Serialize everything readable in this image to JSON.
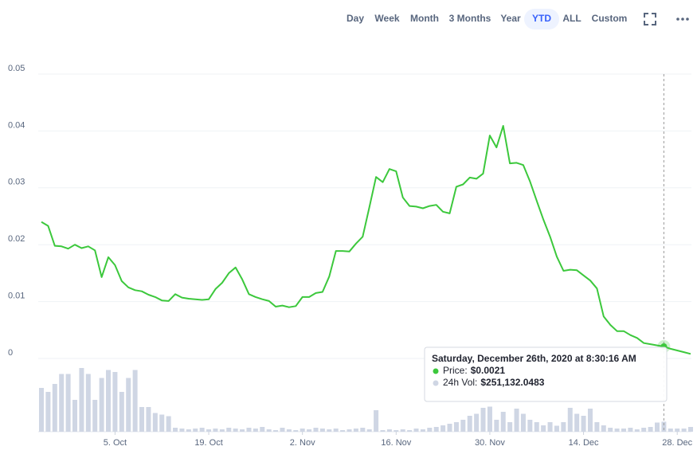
{
  "toolbar": {
    "ranges": [
      "Day",
      "Week",
      "Month",
      "3 Months",
      "Year",
      "YTD",
      "ALL",
      "Custom"
    ],
    "selected": "YTD"
  },
  "chart_data": {
    "type": "line",
    "categories": [
      null,
      null,
      null,
      null,
      null,
      null,
      null,
      null,
      null,
      null,
      null,
      "5. Oct",
      null,
      null,
      null,
      null,
      null,
      null,
      null,
      null,
      null,
      null,
      null,
      null,
      null,
      "19. Oct",
      null,
      null,
      null,
      null,
      null,
      null,
      null,
      null,
      null,
      null,
      null,
      null,
      null,
      "2. Nov",
      null,
      null,
      null,
      null,
      null,
      null,
      null,
      null,
      null,
      null,
      null,
      null,
      null,
      "16. Nov",
      null,
      null,
      null,
      null,
      null,
      null,
      null,
      null,
      null,
      null,
      null,
      null,
      null,
      "30. Nov",
      null,
      null,
      null,
      null,
      null,
      null,
      null,
      null,
      null,
      null,
      null,
      null,
      null,
      "14. Dec",
      null,
      null,
      null,
      null,
      null,
      null,
      null,
      null,
      null,
      null,
      null,
      null,
      null,
      "28. Dec",
      null,
      null
    ],
    "series": [
      {
        "name": "Price",
        "color": "#3cc83c",
        "values": [
          0.024,
          0.0233,
          0.0198,
          0.0197,
          0.0193,
          0.02,
          0.0194,
          0.0197,
          0.019,
          0.0143,
          0.0178,
          0.0164,
          0.0136,
          0.0125,
          0.012,
          0.0118,
          0.0112,
          0.0108,
          0.0102,
          0.0101,
          0.0113,
          0.0107,
          0.0105,
          0.0104,
          0.0103,
          0.0104,
          0.0122,
          0.0133,
          0.015,
          0.016,
          0.0139,
          0.0113,
          0.0108,
          0.0104,
          0.0101,
          0.0091,
          0.0093,
          0.009,
          0.0092,
          0.0108,
          0.0108,
          0.0115,
          0.0117,
          0.0144,
          0.0189,
          0.0189,
          0.0188,
          0.0202,
          0.0214,
          0.0266,
          0.0319,
          0.031,
          0.0333,
          0.0329,
          0.0283,
          0.0268,
          0.0267,
          0.0264,
          0.0268,
          0.027,
          0.0258,
          0.0255,
          0.0302,
          0.0306,
          0.0318,
          0.0316,
          0.0325,
          0.0392,
          0.0371,
          0.0409,
          0.0343,
          0.0344,
          0.034,
          0.0311,
          0.0277,
          0.0244,
          0.0214,
          0.0179,
          0.0154,
          0.0156,
          0.0155,
          0.0146,
          0.0137,
          0.0123,
          0.0074,
          0.0059,
          0.0048,
          0.0048,
          0.0041,
          0.0036,
          0.0027,
          0.0025,
          0.0023,
          0.0021,
          0.0017,
          0.0014,
          0.0011,
          0.0008
        ]
      },
      {
        "name": "24h Vol",
        "color": "#cfd6e4",
        "type": "bar",
        "axis": "y2",
        "values": [
          1100000,
          1000000,
          1200000,
          1450000,
          1450000,
          800000,
          1600000,
          1450000,
          800000,
          1350000,
          1550000,
          1500000,
          1000000,
          1350000,
          1550000,
          620000,
          620000,
          470000,
          430000,
          390000,
          100000,
          80000,
          60000,
          80000,
          100000,
          60000,
          80000,
          60000,
          100000,
          80000,
          60000,
          100000,
          80000,
          120000,
          60000,
          40000,
          100000,
          60000,
          40000,
          80000,
          60000,
          100000,
          80000,
          60000,
          80000,
          40000,
          60000,
          80000,
          100000,
          60000,
          540000,
          40000,
          60000,
          40000,
          60000,
          40000,
          80000,
          60000,
          100000,
          120000,
          160000,
          200000,
          240000,
          300000,
          400000,
          450000,
          600000,
          630000,
          300000,
          500000,
          240000,
          580000,
          450000,
          300000,
          240000,
          160000,
          240000,
          150000,
          240000,
          600000,
          450000,
          400000,
          580000,
          240000,
          160000,
          100000,
          80000,
          80000,
          100000,
          60000,
          100000,
          120000,
          230000,
          251132.0483,
          80000,
          80000,
          80000,
          120000
        ]
      }
    ],
    "ylim": [
      0,
      0.05
    ],
    "yticks": [
      0,
      0.01,
      0.02,
      0.03,
      0.04,
      0.05
    ],
    "y2lim": [
      0,
      1800000
    ],
    "grid": true,
    "tooltip": {
      "title": "Saturday, December 26th, 2020 at 8:30:16 AM",
      "rows": [
        {
          "label": "Price:",
          "value": "$0.0021"
        },
        {
          "label": "24h Vol:",
          "value": "$251,132.0483"
        }
      ]
    }
  }
}
